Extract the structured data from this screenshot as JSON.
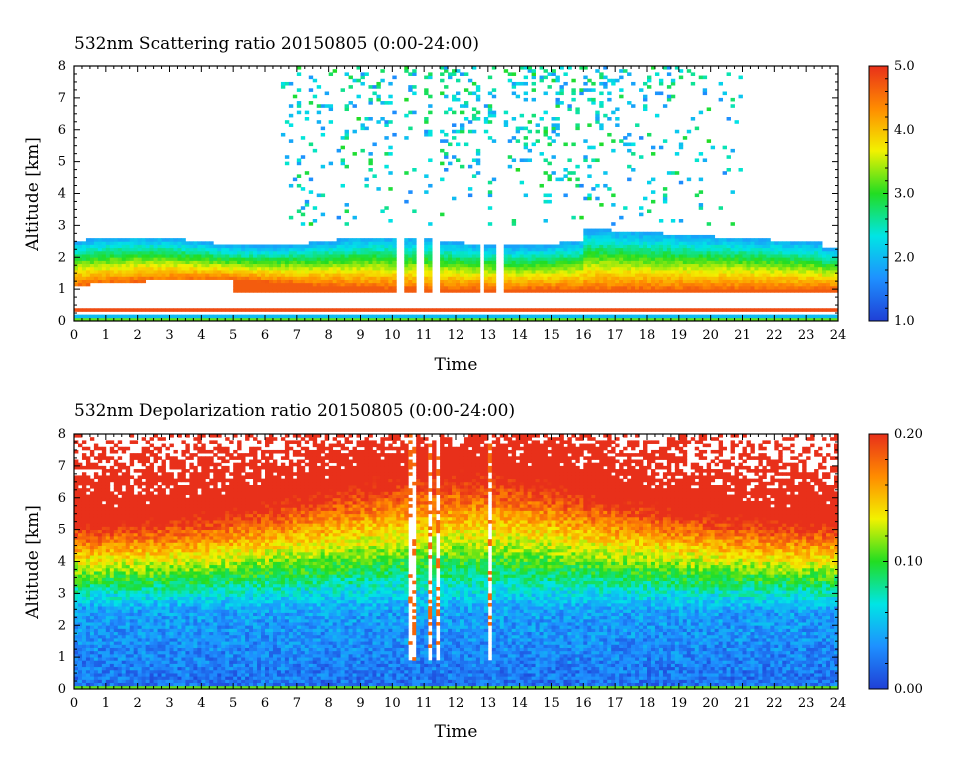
{
  "chart_data": [
    {
      "type": "heatmap",
      "title": "532nm Scattering ratio  20150805 (0:00-24:00)",
      "xlabel": "Time",
      "ylabel": "Altitude [km]",
      "xlim": [
        0,
        24
      ],
      "ylim": [
        0,
        8
      ],
      "x_ticks": [
        "0",
        "1",
        "2",
        "3",
        "4",
        "5",
        "6",
        "7",
        "8",
        "9",
        "10",
        "11",
        "12",
        "13",
        "14",
        "15",
        "16",
        "17",
        "18",
        "19",
        "20",
        "21",
        "22",
        "23",
        "24"
      ],
      "y_ticks": [
        "0",
        "1",
        "2",
        "3",
        "4",
        "5",
        "6",
        "7",
        "8"
      ],
      "colorbar": {
        "min": 1.0,
        "max": 5.0,
        "tick_labels": [
          "1.0",
          "2.0",
          "3.0",
          "4.0",
          "5.0"
        ],
        "colors": [
          "#1f3fd6",
          "#1e90ff",
          "#00e5e5",
          "#22dd22",
          "#f2f200",
          "#ff8c00",
          "#e8301a"
        ]
      }
    },
    {
      "type": "heatmap",
      "title": "532nm Depolarization ratio  20150805 (0:00-24:00)",
      "xlabel": "Time",
      "ylabel": "Altitude [km]",
      "xlim": [
        0,
        24
      ],
      "ylim": [
        0,
        8
      ],
      "x_ticks": [
        "0",
        "1",
        "2",
        "3",
        "4",
        "5",
        "6",
        "7",
        "8",
        "9",
        "10",
        "11",
        "12",
        "13",
        "14",
        "15",
        "16",
        "17",
        "18",
        "19",
        "20",
        "21",
        "22",
        "23",
        "24"
      ],
      "y_ticks": [
        "0",
        "1",
        "2",
        "3",
        "4",
        "5",
        "6",
        "7",
        "8"
      ],
      "colorbar": {
        "min": 0.0,
        "max": 0.2,
        "tick_labels": [
          "0.00",
          "0.10",
          "0.20"
        ],
        "colors": [
          "#1f3fd6",
          "#1e90ff",
          "#00e5e5",
          "#22dd22",
          "#f2f200",
          "#ff8c00",
          "#e8301a"
        ]
      }
    }
  ]
}
